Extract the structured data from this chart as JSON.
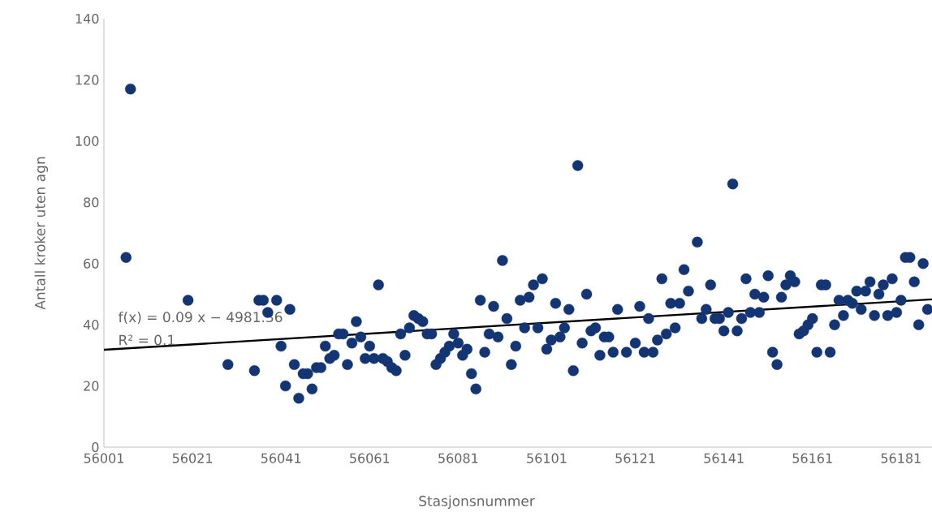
{
  "chart_data": {
    "type": "scatter",
    "xlabel": "Stasjonsnummer",
    "ylabel": "Antall kroker uten agn",
    "annotations": [
      "f(x) = 0.09 x − 4981.36",
      "R² = 0.1"
    ],
    "xlim": [
      56001,
      56188
    ],
    "ylim": [
      0,
      140
    ],
    "xticks": [
      56001,
      56021,
      56041,
      56061,
      56081,
      56101,
      56121,
      56141,
      56161,
      56181
    ],
    "yticks": [
      0,
      20,
      40,
      60,
      80,
      100,
      120,
      140
    ],
    "grid": false,
    "marker": "circle",
    "series": [
      {
        "color": "#143574",
        "x": [
          56006,
          56007,
          56020,
          56029,
          56035,
          56036,
          56037,
          56038,
          56040,
          56041,
          56042,
          56043,
          56044,
          56045,
          56046,
          56047,
          56048,
          56049,
          56050,
          56051,
          56052,
          56053,
          56054,
          56055,
          56056,
          56057,
          56058,
          56059,
          56060,
          56061,
          56062,
          56063,
          56064,
          56065,
          56066,
          56067,
          56068,
          56069,
          56070,
          56071,
          56072,
          56073,
          56074,
          56075,
          56076,
          56077,
          56078,
          56079,
          56080,
          56081,
          56082,
          56083,
          56084,
          56085,
          56086,
          56087,
          56088,
          56089,
          56090,
          56091,
          56092,
          56093,
          56094,
          56095,
          56096,
          56097,
          56098,
          56099,
          56100,
          56101,
          56102,
          56103,
          56104,
          56105,
          56106,
          56107,
          56108,
          56109,
          56110,
          56111,
          56112,
          56113,
          56114,
          56115,
          56116,
          56117,
          56119,
          56121,
          56122,
          56123,
          56124,
          56125,
          56126,
          56127,
          56128,
          56129,
          56130,
          56131,
          56132,
          56133,
          56135,
          56136,
          56137,
          56138,
          56139,
          56140,
          56141,
          56142,
          56143,
          56144,
          56145,
          56146,
          56147,
          56148,
          56149,
          56150,
          56151,
          56152,
          56153,
          56154,
          56155,
          56156,
          56157,
          56158,
          56159,
          56160,
          56161,
          56162,
          56163,
          56164,
          56165,
          56166,
          56167,
          56168,
          56169,
          56170,
          56171,
          56172,
          56173,
          56174,
          56175,
          56176,
          56177,
          56178,
          56179,
          56180,
          56181,
          56182,
          56183,
          56184,
          56185,
          56186,
          56187
        ],
        "values": [
          62,
          117,
          48,
          27,
          25,
          48,
          48,
          44,
          48,
          33,
          20,
          45,
          27,
          16,
          24,
          24,
          19,
          26,
          26,
          33,
          29,
          30,
          37,
          37,
          27,
          34,
          41,
          36,
          29,
          33,
          29,
          53,
          29,
          28,
          26,
          25,
          37,
          30,
          39,
          43,
          42,
          41,
          37,
          37,
          27,
          29,
          31,
          33,
          37,
          34,
          30,
          32,
          24,
          19,
          48,
          31,
          37,
          46,
          36,
          61,
          42,
          27,
          33,
          48,
          39,
          49,
          53,
          39,
          55,
          32,
          35,
          47,
          36,
          39,
          45,
          25,
          92,
          34,
          50,
          38,
          39,
          30,
          36,
          36,
          31,
          45,
          31,
          34,
          46,
          31,
          42,
          31,
          35,
          55,
          37,
          47,
          39,
          47,
          58,
          51,
          67,
          42,
          45,
          53,
          42,
          42,
          38,
          44,
          86,
          38,
          42,
          55,
          44,
          50,
          44,
          49,
          56,
          31,
          27,
          49,
          53,
          56,
          54,
          37,
          38,
          40,
          42,
          31,
          53,
          53,
          31,
          40,
          48,
          43,
          48,
          47,
          51,
          45,
          51,
          54,
          43,
          50,
          53,
          43,
          55,
          44,
          48,
          62,
          62,
          54,
          40,
          60,
          45
        ]
      },
      {
        "type": "line",
        "color": "#000000",
        "marker": "none",
        "x": [
          56001,
          56188
        ],
        "values": [
          31.8,
          48.3
        ]
      }
    ]
  }
}
